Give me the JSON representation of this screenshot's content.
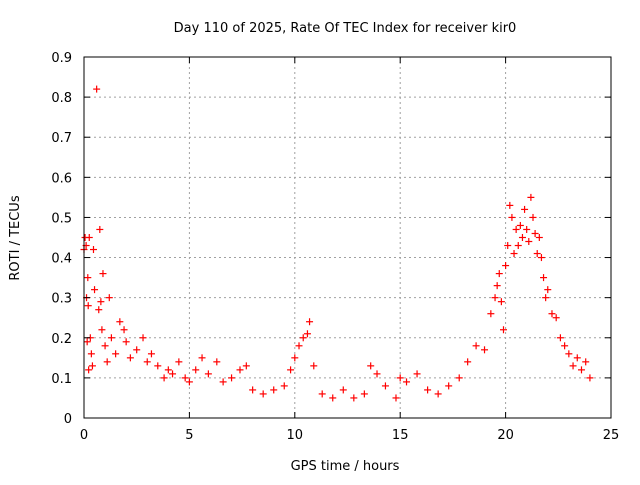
{
  "chart_data": {
    "type": "scatter",
    "title": "Day 110 of 2025, Rate Of TEC Index for receiver kir0",
    "xlabel": "GPS time / hours",
    "ylabel": "ROTI / TECUs",
    "xlim": [
      0,
      25
    ],
    "ylim": [
      0,
      0.9
    ],
    "x_ticks": [
      0,
      5,
      10,
      15,
      20,
      25
    ],
    "y_ticks": [
      0,
      0.1,
      0.2,
      0.3,
      0.4,
      0.5,
      0.6,
      0.7,
      0.8,
      0.9
    ],
    "x_tick_labels": [
      "0",
      "5",
      "10",
      "15",
      "20",
      "25"
    ],
    "y_tick_labels": [
      "0",
      "0.1",
      "0.2",
      "0.3",
      "0.4",
      "0.5",
      "0.6",
      "0.7",
      "0.8",
      "0.9"
    ],
    "grid": true,
    "marker": "plus",
    "color": "#ff0000",
    "series": [
      {
        "x": [
          0.0,
          0.05,
          0.1,
          0.12,
          0.15,
          0.18,
          0.2,
          0.22,
          0.25,
          0.3,
          0.35,
          0.4,
          0.45,
          0.5,
          0.6,
          0.7,
          0.75,
          0.8,
          0.85,
          0.9,
          1.0,
          1.1,
          1.2,
          1.3,
          1.5,
          1.7,
          1.9,
          2.0,
          2.2,
          2.5,
          2.8,
          3.0,
          3.2,
          3.5,
          3.8,
          4.0,
          4.2,
          4.5,
          4.8,
          5.0,
          5.3,
          5.6,
          5.9,
          6.3,
          6.6,
          7.0,
          7.4,
          7.7,
          8.0,
          8.5,
          9.0,
          9.5,
          9.8,
          10.0,
          10.2,
          10.4,
          10.6,
          10.7,
          10.9,
          11.3,
          11.8,
          12.3,
          12.8,
          13.3,
          13.6,
          13.9,
          14.3,
          14.8,
          15.0,
          15.3,
          15.8,
          16.3,
          16.8,
          17.3,
          17.8,
          18.2,
          18.6,
          19.0,
          19.3,
          19.5,
          19.6,
          19.7,
          19.8,
          19.9,
          20.0,
          20.1,
          20.2,
          20.3,
          20.4,
          20.5,
          20.6,
          20.7,
          20.8,
          20.9,
          21.0,
          21.1,
          21.2,
          21.3,
          21.4,
          21.5,
          21.6,
          21.7,
          21.8,
          21.9,
          22.0,
          22.2,
          22.4,
          22.6,
          22.8,
          23.0,
          23.2,
          23.4,
          23.6,
          23.8,
          24.0
        ],
        "y": [
          0.42,
          0.45,
          0.43,
          0.3,
          0.19,
          0.35,
          0.28,
          0.12,
          0.45,
          0.2,
          0.16,
          0.13,
          0.42,
          0.32,
          0.82,
          0.27,
          0.47,
          0.29,
          0.22,
          0.36,
          0.18,
          0.14,
          0.3,
          0.2,
          0.16,
          0.24,
          0.22,
          0.19,
          0.15,
          0.17,
          0.2,
          0.14,
          0.16,
          0.13,
          0.1,
          0.12,
          0.11,
          0.14,
          0.1,
          0.09,
          0.12,
          0.15,
          0.11,
          0.14,
          0.09,
          0.1,
          0.12,
          0.13,
          0.07,
          0.06,
          0.07,
          0.08,
          0.12,
          0.15,
          0.18,
          0.2,
          0.21,
          0.24,
          0.13,
          0.06,
          0.05,
          0.07,
          0.05,
          0.06,
          0.13,
          0.11,
          0.08,
          0.05,
          0.1,
          0.09,
          0.11,
          0.07,
          0.06,
          0.08,
          0.1,
          0.14,
          0.18,
          0.17,
          0.26,
          0.3,
          0.33,
          0.36,
          0.29,
          0.22,
          0.38,
          0.43,
          0.53,
          0.5,
          0.41,
          0.47,
          0.43,
          0.48,
          0.45,
          0.52,
          0.47,
          0.44,
          0.55,
          0.5,
          0.46,
          0.41,
          0.45,
          0.4,
          0.35,
          0.3,
          0.32,
          0.26,
          0.25,
          0.2,
          0.18,
          0.16,
          0.13,
          0.15,
          0.12,
          0.14,
          0.1
        ]
      }
    ]
  }
}
